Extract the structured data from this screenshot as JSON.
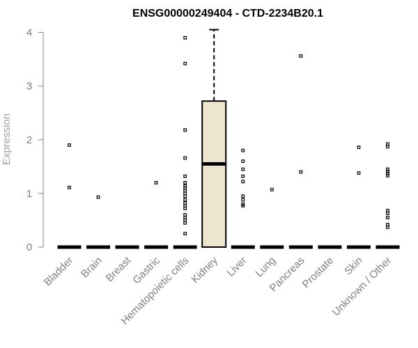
{
  "chart_data": {
    "type": "boxplot",
    "title": "ENSG00000249404 - CTD-2234B20.1",
    "xlabel": "",
    "ylabel": "Expression",
    "ylim": [
      0,
      4.1
    ],
    "yticks": [
      0,
      1,
      2,
      3,
      4
    ],
    "box_fill": "#ede6cc",
    "categories": [
      "Bladder",
      "Brain",
      "Breast",
      "Gastric",
      "Hematopoietic cells",
      "Kidney",
      "Liver",
      "Lung",
      "Pancreas",
      "Prostate",
      "Skin",
      "Unknown / Other"
    ],
    "boxes": [
      {
        "category": "Bladder",
        "min": 0,
        "q1": 0,
        "median": 0,
        "q3": 0,
        "max": 0,
        "outliers": [
          1.9,
          1.11
        ]
      },
      {
        "category": "Brain",
        "min": 0,
        "q1": 0,
        "median": 0,
        "q3": 0,
        "max": 0,
        "outliers": [
          0.93
        ]
      },
      {
        "category": "Breast",
        "min": 0,
        "q1": 0,
        "median": 0,
        "q3": 0,
        "max": 0,
        "outliers": []
      },
      {
        "category": "Gastric",
        "min": 0,
        "q1": 0,
        "median": 0,
        "q3": 0,
        "max": 0,
        "outliers": [
          1.2
        ]
      },
      {
        "category": "Hematopoietic cells",
        "min": 0,
        "q1": 0,
        "median": 0,
        "q3": 0,
        "max": 0,
        "outliers": [
          3.9,
          3.42,
          2.18,
          1.66,
          1.32,
          1.2,
          1.14,
          1.1,
          1.05,
          1.0,
          0.95,
          0.88,
          0.82,
          0.77,
          0.72,
          0.6,
          0.55,
          0.5,
          0.45,
          0.25
        ]
      },
      {
        "category": "Kidney",
        "min": 0,
        "q1": 0,
        "median": 1.55,
        "q3": 2.72,
        "max": 4.05,
        "outliers": []
      },
      {
        "category": "Liver",
        "min": 0,
        "q1": 0,
        "median": 0,
        "q3": 0,
        "max": 0,
        "outliers": [
          1.8,
          1.6,
          1.45,
          1.32,
          1.22,
          0.95,
          0.88,
          0.8,
          0.77
        ]
      },
      {
        "category": "Lung",
        "min": 0,
        "q1": 0,
        "median": 0,
        "q3": 0,
        "max": 0,
        "outliers": [
          1.07
        ]
      },
      {
        "category": "Pancreas",
        "min": 0,
        "q1": 0,
        "median": 0,
        "q3": 0,
        "max": 0,
        "outliers": [
          3.56,
          1.4
        ]
      },
      {
        "category": "Prostate",
        "min": 0,
        "q1": 0,
        "median": 0,
        "q3": 0,
        "max": 0,
        "outliers": []
      },
      {
        "category": "Skin",
        "min": 0,
        "q1": 0,
        "median": 0,
        "q3": 0,
        "max": 0,
        "outliers": [
          1.86,
          1.38
        ]
      },
      {
        "category": "Unknown / Other",
        "min": 0,
        "q1": 0,
        "median": 0,
        "q3": 0,
        "max": 0,
        "outliers": [
          1.92,
          1.87,
          1.45,
          1.41,
          1.37,
          1.33,
          0.68,
          0.63,
          0.55,
          0.42,
          0.37
        ]
      }
    ],
    "grid": false,
    "legend": "none"
  }
}
